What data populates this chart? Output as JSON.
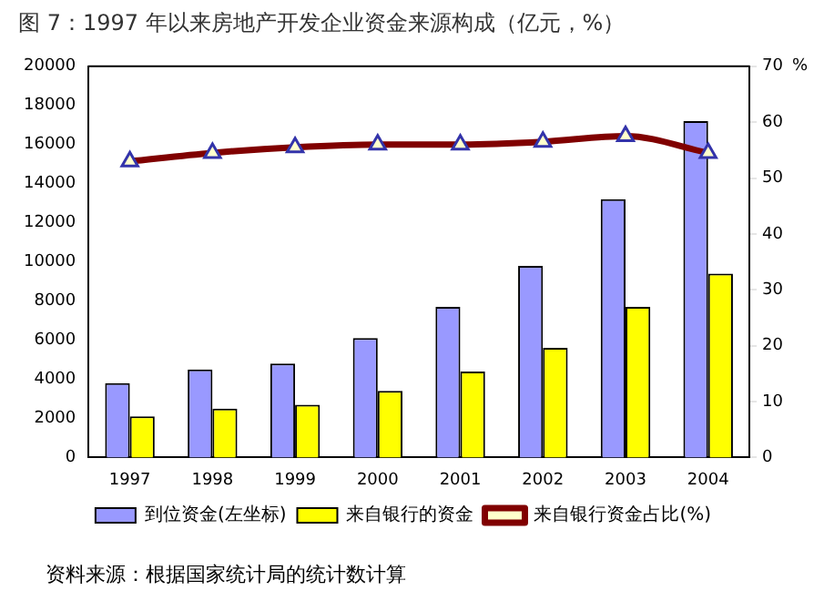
{
  "chart_data": {
    "type": "bar",
    "title": "图 7：1997 年以来房地产开发企业资金来源构成（亿元，%）",
    "categories": [
      "1997",
      "1998",
      "1999",
      "2000",
      "2001",
      "2002",
      "2003",
      "2004"
    ],
    "series": [
      {
        "name": "到位资金(左坐标)",
        "color": "#9999ff",
        "values": [
          3800,
          4500,
          4800,
          6100,
          7700,
          9800,
          13200,
          17200
        ]
      },
      {
        "name": "来自银行的资金",
        "color": "#ffff00",
        "values": [
          2100,
          2500,
          2700,
          3400,
          4400,
          5600,
          7700,
          9400
        ]
      },
      {
        "name": "来自银行资金占比(%)",
        "type": "line",
        "axis": "y2",
        "color": "#800000",
        "marker": "triangle",
        "values": [
          53,
          54.5,
          55.5,
          56,
          56,
          56.5,
          57.5,
          54.5
        ]
      }
    ],
    "ylim": [
      0,
      20000
    ],
    "yticks": [
      0,
      2000,
      4000,
      6000,
      8000,
      10000,
      12000,
      14000,
      16000,
      18000,
      20000
    ],
    "y2lim": [
      0,
      70
    ],
    "y2ticks": [
      0,
      10,
      20,
      30,
      40,
      50,
      60,
      70
    ],
    "y2label": "%",
    "grid": false,
    "legend": "bottom",
    "annotations": [
      "资料来源：根据国家统计局的统计数计算"
    ]
  }
}
